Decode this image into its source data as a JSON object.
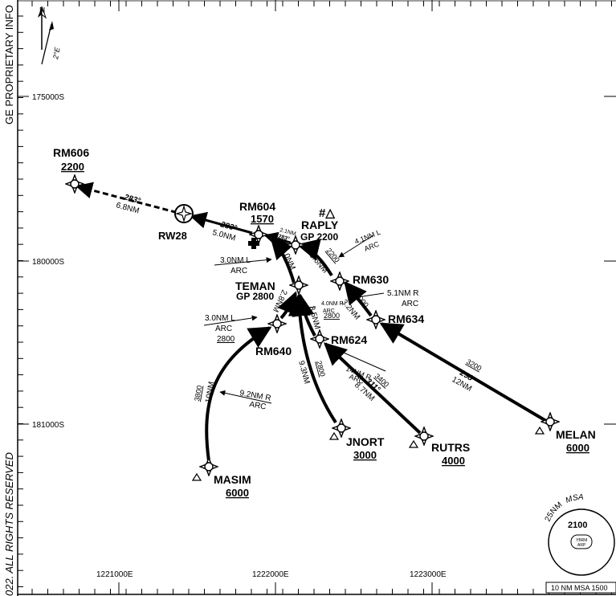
{
  "chart": {
    "north_label": "N",
    "variation": "2°E",
    "side_top": "GE PROPRIETARY INFO",
    "side_bottom": "022. ALL RIGHTS RESERVED",
    "grid_y": [
      "175000S",
      "180000S",
      "181000S"
    ],
    "grid_x": [
      "1221000E",
      "1222000E",
      "1223000E"
    ],
    "msa_note": "10 NM MSA 1500"
  },
  "waypoints": {
    "rm606": {
      "name": "RM606",
      "alt": "2200"
    },
    "rw28": {
      "name": "RW28"
    },
    "rm604": {
      "name": "RM604",
      "alt": "1570"
    },
    "raply": {
      "name": "RAPLY",
      "gp": "GP 2200",
      "mark": "#△"
    },
    "rm630": {
      "name": "RM630"
    },
    "teman": {
      "name": "TEMAN",
      "gp": "GP 2800"
    },
    "rm634": {
      "name": "RM634"
    },
    "rm624": {
      "name": "RM624"
    },
    "rm640": {
      "name": "RM640"
    },
    "jnort": {
      "name": "JNORT",
      "alt": "3000"
    },
    "rutrs": {
      "name": "RUTRS",
      "alt": "4000"
    },
    "melan": {
      "name": "MELAN",
      "alt": "6000"
    },
    "masim": {
      "name": "MASIM",
      "alt": "6000"
    }
  },
  "legs": {
    "rm606_rw28": {
      "course": "283°",
      "dist": "6.8NM"
    },
    "rw28_rm604": {
      "course": "283°",
      "dist": "5.0NM"
    },
    "rm604_raply": {
      "dist": "2.1NM",
      "course": "283°"
    },
    "raply_rm630": {
      "dist": "3.6NM",
      "alt": "2200"
    },
    "rm630_rm634": {
      "alt": "3000",
      "dist": "3.2NM"
    },
    "teman_rm604": {
      "dist": "4.0NM"
    },
    "teman_rm640": {
      "dist": "2.8NM"
    },
    "teman_rm624": {
      "dist": "3.5NM",
      "alt": "2800"
    },
    "teman_jnort": {
      "dist": "9.3NM",
      "alt": "2800"
    },
    "melan_rm634": {
      "alt": "3200",
      "course": "298°",
      "dist": "12NM"
    },
    "rutrs_rm624": {
      "alt": "3400",
      "course": "311°",
      "dist": "8.7NM"
    },
    "masim_rm640": {
      "alt": "3800",
      "dist": "10NM"
    }
  },
  "arcs": {
    "a1": {
      "l1": "4.1NM L",
      "l2": "ARC"
    },
    "a2": {
      "l1": "3.0NM L",
      "l2": "ARC"
    },
    "a3": {
      "l1": "5.1NM R",
      "l2": "ARC"
    },
    "a4": {
      "l1": "4.0NM R",
      "l2": "ARC",
      "alt": "2800"
    },
    "a5": {
      "l1": "3.0NM L",
      "l2": "ARC",
      "alt": "2800"
    },
    "a6": {
      "l1": "14NM R",
      "l2": "ARC"
    },
    "a7": {
      "l1": "9.2NM R",
      "l2": "ARC"
    }
  },
  "msa": {
    "radius": "25NM",
    "label": "MSA",
    "alt": "2100",
    "ref1": "YBRM",
    "ref2": "ARP"
  }
}
